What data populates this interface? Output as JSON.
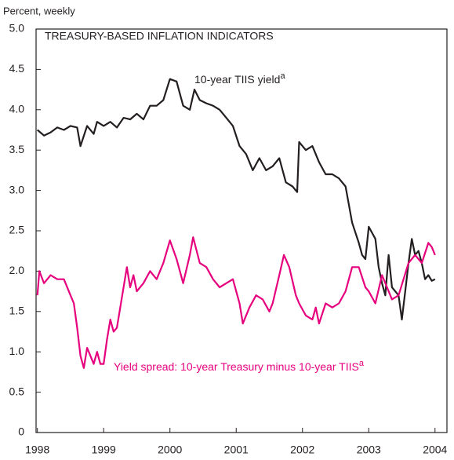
{
  "chart_data": {
    "type": "line",
    "title": "TREASURY-BASED INFLATION INDICATORS",
    "y_label": "Percent, weekly",
    "xlim": [
      1997.98,
      2004.18
    ],
    "ylim": [
      0,
      5
    ],
    "xticks": [
      1998,
      1999,
      2000,
      2001,
      2002,
      2003,
      2004
    ],
    "yticks": [
      0,
      {
        "value": 0.5,
        "label": "0.5"
      },
      {
        "value": 1,
        "label": "1.0"
      },
      {
        "value": 1.5,
        "label": "1.5"
      },
      {
        "value": 2,
        "label": "2.0"
      },
      {
        "value": 2.5,
        "label": "2.5"
      },
      {
        "value": 3,
        "label": "3.0"
      },
      {
        "value": 3.5,
        "label": "3.5"
      },
      {
        "value": 4,
        "label": "4.0"
      },
      {
        "value": 4.5,
        "label": "4.5"
      },
      {
        "value": 5,
        "label": "5.0"
      }
    ],
    "annotations": [
      {
        "text": "10-year TIIS yield",
        "sup": "a",
        "series": 0
      },
      {
        "text": "Yield spread: 10-year Treasury minus 10-year TIIS",
        "sup": "a",
        "series": 1
      }
    ],
    "series": [
      {
        "name": "10-year TIIS yield",
        "color": "#231f20",
        "x": [
          1998.0,
          1998.1,
          1998.2,
          1998.3,
          1998.4,
          1998.5,
          1998.6,
          1998.65,
          1998.75,
          1998.85,
          1998.9,
          1999.0,
          1999.1,
          1999.2,
          1999.3,
          1999.4,
          1999.5,
          1999.6,
          1999.7,
          1999.8,
          1999.9,
          2000.0,
          2000.1,
          2000.2,
          2000.3,
          2000.37,
          2000.45,
          2000.55,
          2000.65,
          2000.75,
          2000.85,
          2000.95,
          2001.05,
          2001.15,
          2001.25,
          2001.35,
          2001.45,
          2001.55,
          2001.65,
          2001.75,
          2001.85,
          2001.92,
          2001.95,
          2002.05,
          2002.15,
          2002.25,
          2002.35,
          2002.45,
          2002.55,
          2002.65,
          2002.75,
          2002.85,
          2002.9,
          2002.95,
          2003.0,
          2003.1,
          2003.15,
          2003.2,
          2003.25,
          2003.3,
          2003.35,
          2003.45,
          2003.5,
          2003.55,
          2003.6,
          2003.65,
          2003.7,
          2003.75,
          2003.8,
          2003.85,
          2003.9,
          2003.95,
          2004.0
        ],
        "values": [
          3.75,
          3.68,
          3.72,
          3.78,
          3.75,
          3.8,
          3.78,
          3.55,
          3.8,
          3.7,
          3.85,
          3.8,
          3.85,
          3.78,
          3.9,
          3.88,
          3.95,
          3.88,
          4.05,
          4.05,
          4.12,
          4.38,
          4.35,
          4.05,
          4.0,
          4.25,
          4.12,
          4.08,
          4.05,
          4.0,
          3.9,
          3.8,
          3.55,
          3.45,
          3.25,
          3.4,
          3.25,
          3.3,
          3.4,
          3.1,
          3.05,
          2.98,
          3.6,
          3.5,
          3.55,
          3.35,
          3.2,
          3.2,
          3.15,
          3.05,
          2.6,
          2.35,
          2.2,
          2.15,
          2.55,
          2.4,
          2.05,
          1.85,
          1.7,
          2.2,
          1.8,
          1.7,
          1.4,
          1.75,
          2.1,
          2.4,
          2.2,
          2.25,
          2.1,
          1.9,
          1.95,
          1.88,
          1.9
        ]
      },
      {
        "name": "Yield spread: 10-year Treasury minus 10-year TIIS",
        "color": "#e6007e",
        "x": [
          1998.0,
          1998.03,
          1998.1,
          1998.2,
          1998.3,
          1998.4,
          1998.5,
          1998.55,
          1998.6,
          1998.65,
          1998.7,
          1998.75,
          1998.8,
          1998.85,
          1998.9,
          1998.95,
          1999.0,
          1999.05,
          1999.1,
          1999.15,
          1999.2,
          1999.3,
          1999.35,
          1999.4,
          1999.45,
          1999.5,
          1999.6,
          1999.7,
          1999.8,
          1999.9,
          2000.0,
          2000.1,
          2000.2,
          2000.3,
          2000.35,
          2000.45,
          2000.55,
          2000.65,
          2000.75,
          2000.85,
          2000.95,
          2001.05,
          2001.1,
          2001.2,
          2001.3,
          2001.4,
          2001.5,
          2001.55,
          2001.65,
          2001.72,
          2001.8,
          2001.9,
          2001.95,
          2002.05,
          2002.15,
          2002.2,
          2002.25,
          2002.35,
          2002.45,
          2002.55,
          2002.65,
          2002.75,
          2002.85,
          2002.95,
          2003.0,
          2003.1,
          2003.2,
          2003.35,
          2003.45,
          2003.6,
          2003.7,
          2003.8,
          2003.9,
          2003.95,
          2004.0
        ],
        "values": [
          1.7,
          2.0,
          1.85,
          1.95,
          1.9,
          1.9,
          1.7,
          1.6,
          1.3,
          0.95,
          0.8,
          1.05,
          0.95,
          0.85,
          1.0,
          0.85,
          0.85,
          1.15,
          1.4,
          1.25,
          1.3,
          1.8,
          2.05,
          1.8,
          1.95,
          1.75,
          1.85,
          2.0,
          1.9,
          2.1,
          2.38,
          2.15,
          1.85,
          2.2,
          2.42,
          2.1,
          2.05,
          1.9,
          1.8,
          1.85,
          1.9,
          1.6,
          1.35,
          1.55,
          1.7,
          1.65,
          1.5,
          1.6,
          1.95,
          2.2,
          2.05,
          1.7,
          1.6,
          1.45,
          1.4,
          1.55,
          1.35,
          1.6,
          1.55,
          1.6,
          1.75,
          2.05,
          2.05,
          1.8,
          1.75,
          1.6,
          1.95,
          1.65,
          1.7,
          2.1,
          2.2,
          2.1,
          2.35,
          2.3,
          2.2
        ]
      }
    ]
  }
}
